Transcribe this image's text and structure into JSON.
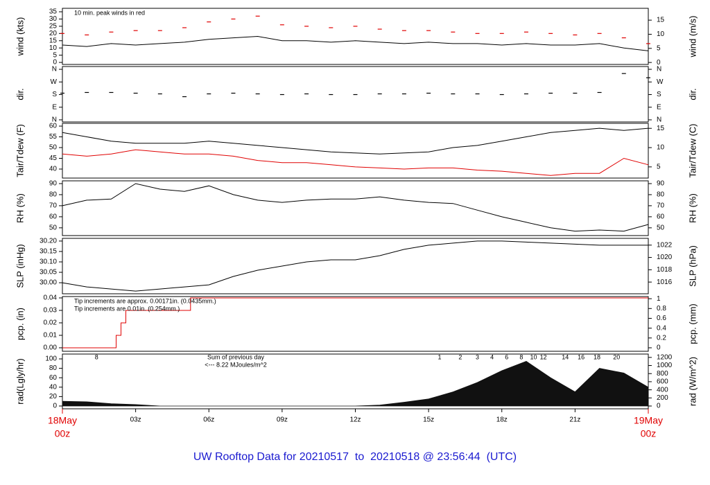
{
  "chart_data": [
    {
      "type": "line",
      "ylabel": "wind (kts)",
      "y2label": "wind (m/s)",
      "notes": [
        {
          "text": "10 min. peak winds in red",
          "color": "#e00000"
        }
      ],
      "xlim": [
        0,
        24
      ],
      "ylim": [
        -1.4,
        37.4
      ],
      "yticks": [
        0,
        5,
        10,
        15,
        20,
        25,
        30,
        35
      ],
      "y2lim": [
        -0.7,
        19.2
      ],
      "y2ticks": [
        0,
        5,
        10,
        15
      ],
      "x": [
        0,
        1,
        2,
        3,
        4,
        5,
        6,
        7,
        8,
        9,
        10,
        11,
        12,
        13,
        14,
        15,
        16,
        17,
        18,
        19,
        20,
        21,
        22,
        23,
        24
      ],
      "series": [
        {
          "name": "wind",
          "color": "#000000",
          "values": [
            12,
            11,
            13,
            12,
            13,
            14,
            16,
            17,
            18,
            15,
            15,
            14,
            15,
            14,
            13,
            14,
            13,
            13,
            12,
            13,
            12,
            12,
            13,
            10,
            8
          ]
        },
        {
          "name": "peak",
          "type": "points",
          "color": "#e00000",
          "values": [
            20,
            19,
            21,
            22,
            22,
            24,
            28,
            30,
            32,
            26,
            25,
            24,
            25,
            23,
            22,
            22,
            21,
            20,
            20,
            21,
            20,
            19,
            20,
            17,
            13
          ]
        }
      ]
    },
    {
      "type": "scatter",
      "ylabel": "dir.",
      "y2label": "dir.",
      "xlim": [
        0,
        24
      ],
      "ylim": [
        -15,
        380
      ],
      "yticks": [
        {
          "value": 0,
          "label": "N"
        },
        {
          "value": 90,
          "label": "E"
        },
        {
          "value": 180,
          "label": "S"
        },
        {
          "value": 270,
          "label": "W"
        },
        {
          "value": 360,
          "label": "N"
        }
      ],
      "y2ticks": [
        {
          "value": 0,
          "label": "N"
        },
        {
          "value": 90,
          "label": "E"
        },
        {
          "value": 180,
          "label": "S"
        },
        {
          "value": 270,
          "label": "W"
        },
        {
          "value": 360,
          "label": "N"
        }
      ],
      "y2lim": [
        -15,
        380
      ],
      "x": [
        0,
        1,
        2,
        3,
        4,
        5,
        6,
        7,
        8,
        9,
        10,
        11,
        12,
        13,
        14,
        15,
        16,
        17,
        18,
        19,
        20,
        21,
        22,
        23,
        24
      ],
      "series": [
        {
          "name": "dir",
          "color": "#000000",
          "values": [
            190,
            195,
            195,
            190,
            185,
            165,
            185,
            190,
            185,
            180,
            185,
            180,
            180,
            185,
            185,
            190,
            185,
            185,
            180,
            185,
            190,
            190,
            195,
            330,
            300
          ]
        }
      ]
    },
    {
      "type": "line",
      "ylabel": "Tair/Tdew (F)",
      "y2label": "Tair/Tdew (C)",
      "xlim": [
        0,
        24
      ],
      "ylim": [
        35.8,
        61.3
      ],
      "yticks": [
        40,
        45,
        50,
        55,
        60
      ],
      "y2lim": [
        2.1,
        16.3
      ],
      "y2ticks": [
        5,
        10,
        15
      ],
      "x": [
        0,
        1,
        2,
        3,
        4,
        5,
        6,
        7,
        8,
        9,
        10,
        11,
        12,
        13,
        14,
        15,
        16,
        17,
        18,
        19,
        20,
        21,
        22,
        23,
        24
      ],
      "series": [
        {
          "name": "Tair",
          "color": "#000000",
          "values": [
            57,
            55,
            53,
            52,
            52,
            52,
            53,
            52,
            51,
            50,
            49,
            48,
            47.5,
            47,
            47.5,
            48,
            50,
            51,
            53,
            55,
            57,
            58,
            59,
            58,
            59
          ]
        },
        {
          "name": "Tdew",
          "color": "#e00000",
          "values": [
            47,
            46,
            47,
            49,
            48,
            47,
            47,
            46,
            44,
            43,
            43,
            42,
            41,
            40.5,
            40,
            40.5,
            40.5,
            39.5,
            39,
            38,
            37,
            38,
            38,
            45,
            42
          ]
        }
      ]
    },
    {
      "type": "line",
      "ylabel": "RH (%)",
      "y2label": "RH (%)",
      "xlim": [
        0,
        24
      ],
      "ylim": [
        43,
        92.5
      ],
      "yticks": [
        50,
        60,
        70,
        80,
        90
      ],
      "y2lim": [
        43,
        92.5
      ],
      "y2ticks": [
        50,
        60,
        70,
        80,
        90
      ],
      "x": [
        0,
        1,
        2,
        3,
        4,
        5,
        6,
        7,
        8,
        9,
        10,
        11,
        12,
        13,
        14,
        15,
        16,
        17,
        18,
        19,
        20,
        21,
        22,
        23,
        24
      ],
      "series": [
        {
          "name": "RH",
          "color": "#000000",
          "values": [
            70,
            75,
            76,
            90,
            85,
            83,
            88,
            80,
            75,
            73,
            75,
            76,
            76,
            78,
            75,
            73,
            72,
            66,
            60,
            55,
            50,
            47,
            48,
            47,
            53
          ]
        }
      ]
    },
    {
      "type": "line",
      "ylabel": "SLP (inHg)",
      "y2label": "SLP (hPa)",
      "xlim": [
        0,
        24
      ],
      "ylim": [
        29.947,
        30.213
      ],
      "yticks": [
        {
          "value": 30,
          "label": "30.00"
        },
        {
          "value": 30.05,
          "label": "30.05"
        },
        {
          "value": 30.1,
          "label": "30.10"
        },
        {
          "value": 30.15,
          "label": "30.15"
        },
        {
          "value": 30.2,
          "label": "30.20"
        }
      ],
      "y2lim": [
        1014.1,
        1023.1
      ],
      "y2ticks": [
        1016,
        1018,
        1020,
        1022
      ],
      "x": [
        0,
        1,
        2,
        3,
        4,
        5,
        6,
        7,
        8,
        9,
        10,
        11,
        12,
        13,
        14,
        15,
        16,
        17,
        18,
        19,
        20,
        21,
        22,
        23,
        24
      ],
      "series": [
        {
          "name": "SLP",
          "color": "#000000",
          "values": [
            30.0,
            29.98,
            29.97,
            29.96,
            29.97,
            29.98,
            29.99,
            30.03,
            30.06,
            30.08,
            30.1,
            30.11,
            30.11,
            30.13,
            30.16,
            30.18,
            30.19,
            30.2,
            30.2,
            30.195,
            30.19,
            30.185,
            30.18,
            30.18,
            30.18
          ]
        }
      ]
    },
    {
      "type": "line",
      "ylabel": "pcp. (in)",
      "y2label": "pcp. (mm)",
      "notes": [
        {
          "text": "Tip increments are approx. 0.00171in. (0.0435mm.)",
          "color": "#e00000"
        },
        {
          "text": "Tip increments are 0.01in. (0.254mm.)",
          "color": "#1a1ad0"
        }
      ],
      "xlim": [
        0,
        24
      ],
      "ylim": [
        -0.0028,
        0.0411
      ],
      "yticks": [
        {
          "value": 0,
          "label": "0.00"
        },
        {
          "value": 0.01,
          "label": "0.01"
        },
        {
          "value": 0.02,
          "label": "0.02"
        },
        {
          "value": 0.03,
          "label": "0.03"
        },
        {
          "value": 0.04,
          "label": "0.04"
        }
      ],
      "y2lim": [
        -0.071,
        1.044
      ],
      "y2ticks": [
        0,
        0.2,
        0.4,
        0.6,
        0.8,
        1
      ],
      "x": [
        0,
        2.2,
        2.2,
        2.4,
        2.4,
        2.6,
        2.6,
        5.25,
        5.25,
        24
      ],
      "series": [
        {
          "name": "pcp",
          "color": "#e00000",
          "values": [
            0,
            0,
            0.01,
            0.01,
            0.02,
            0.02,
            0.03,
            0.03,
            0.04,
            0.04
          ]
        }
      ]
    },
    {
      "type": "area",
      "ylabel": "rad(Lgly/hr)",
      "y2label": "rad (W/m^2)",
      "notes": [
        {
          "text": "Sum of previous day",
          "color": "#9933cc"
        },
        {
          "text": "<--- 8.22 MJoules/m^2",
          "color": "#9933cc"
        }
      ],
      "markers": [
        {
          "text": "8",
          "x": 1.4
        },
        {
          "text": "1",
          "x": 15.45
        },
        {
          "text": "2",
          "x": 16.3
        },
        {
          "text": "3",
          "x": 17.0
        },
        {
          "text": "4",
          "x": 17.6
        },
        {
          "text": "6",
          "x": 18.2
        },
        {
          "text": "8",
          "x": 18.8
        },
        {
          "text": "10",
          "x": 19.3
        },
        {
          "text": "12",
          "x": 19.7
        },
        {
          "text": "14",
          "x": 20.6
        },
        {
          "text": "16",
          "x": 21.25
        },
        {
          "text": "18",
          "x": 21.9
        },
        {
          "text": "20",
          "x": 22.7
        }
      ],
      "marker_color": "#9933cc",
      "xlim": [
        0,
        24
      ],
      "ylim": [
        -5.9,
        110.3
      ],
      "yticks": [
        0,
        20,
        40,
        60,
        80,
        100
      ],
      "y2lim": [
        -68.6,
        1283
      ],
      "y2ticks": [
        0,
        200,
        400,
        600,
        800,
        1000,
        1200
      ],
      "x": [
        0,
        1,
        2,
        3,
        4,
        5,
        6,
        7,
        8,
        9,
        10,
        11,
        12,
        13,
        14,
        15,
        16,
        17,
        18,
        19,
        20,
        21,
        22,
        23,
        24
      ],
      "series": [
        {
          "name": "rad",
          "color": "#111111",
          "values": [
            10,
            9,
            5,
            3,
            0,
            0,
            0,
            0,
            0,
            0,
            0,
            0,
            0,
            2,
            8,
            15,
            30,
            50,
            75,
            95,
            60,
            30,
            80,
            70,
            40
          ]
        }
      ],
      "xticks": [
        {
          "value": 3,
          "label": "03z"
        },
        {
          "value": 6,
          "label": "06z"
        },
        {
          "value": 9,
          "label": "09z"
        },
        {
          "value": 12,
          "label": "12z"
        },
        {
          "value": 15,
          "label": "15z"
        },
        {
          "value": 18,
          "label": "18z"
        },
        {
          "value": 21,
          "label": "21z"
        }
      ],
      "date_labels": [
        {
          "value": 0,
          "date": "18May",
          "time": "00z"
        },
        {
          "value": 24,
          "date": "19May",
          "time": "00z"
        }
      ]
    }
  ],
  "title": "UW Rooftop Data for 20210517  to  20210518 @ 23:56:44  (UTC)"
}
